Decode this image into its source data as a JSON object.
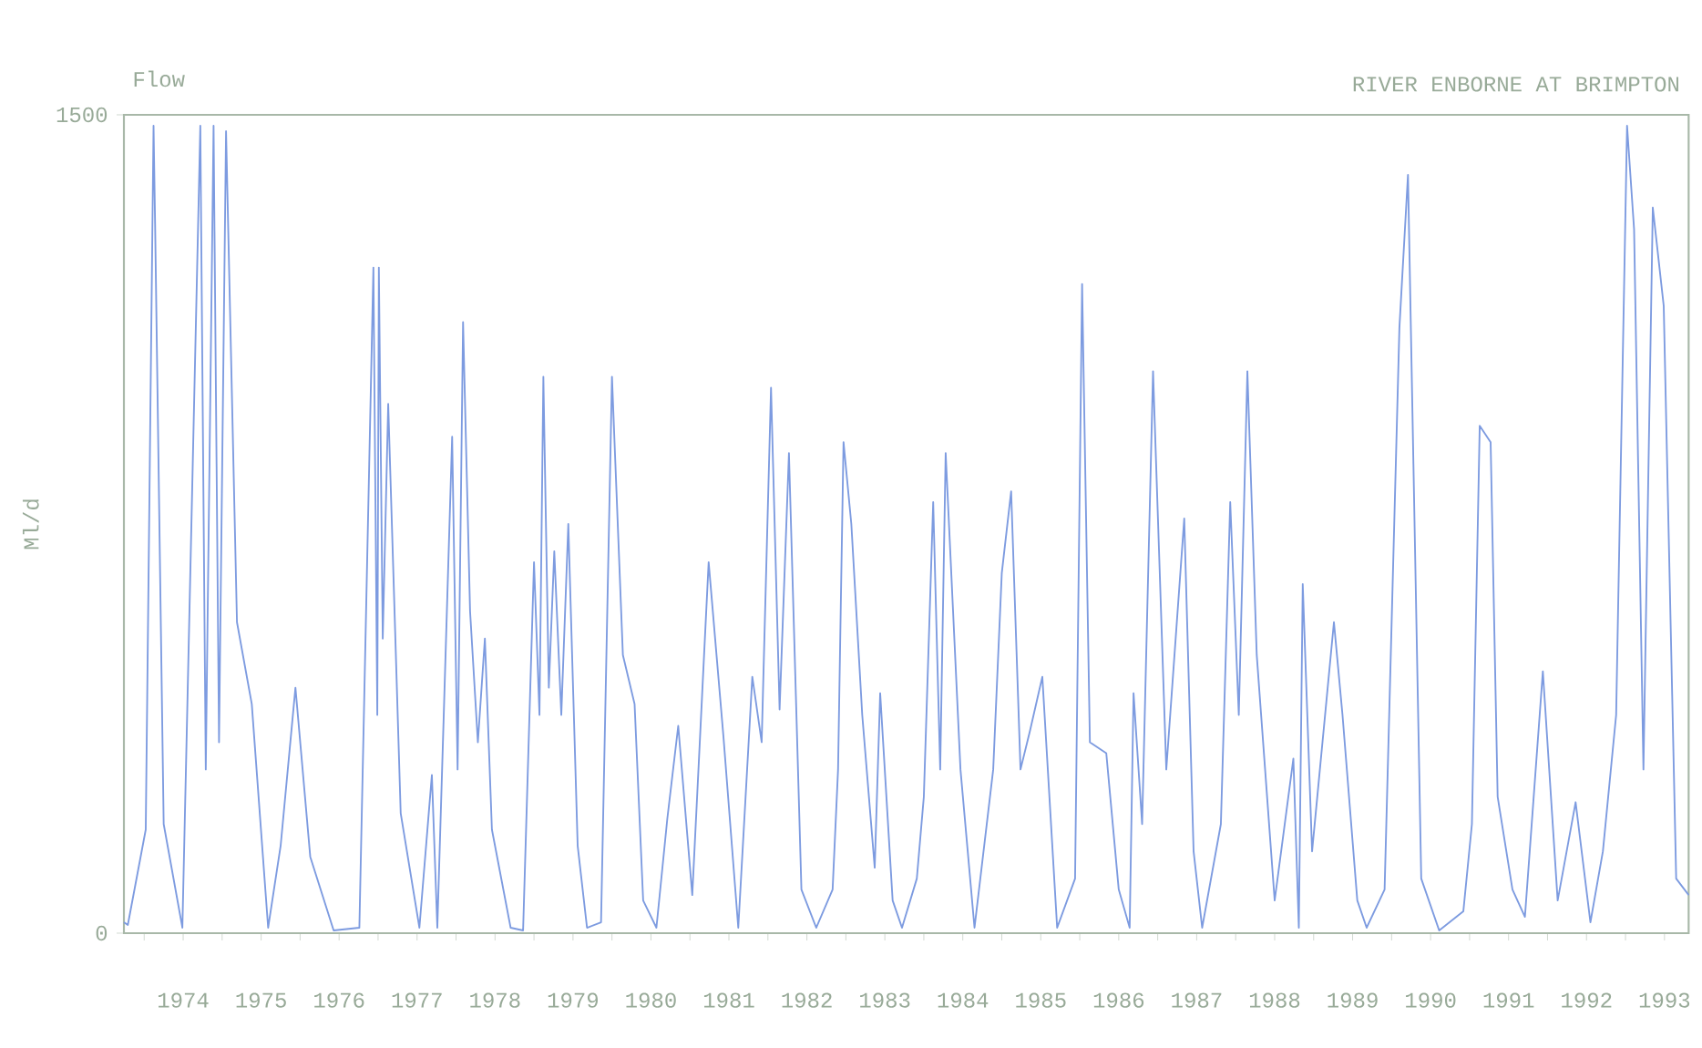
{
  "chart_data": {
    "type": "line",
    "title": "RIVER ENBORNE AT BRIMPTON",
    "annotations": [
      "Flow"
    ],
    "ylabel": "Ml/d",
    "xlim": [
      1973.74,
      1993.81
    ],
    "ylim": [
      0,
      1500
    ],
    "yticks": [
      0,
      1500
    ],
    "xticks": [
      {
        "value": 1974,
        "label": null
      },
      {
        "value": 1974.5,
        "label": "1974"
      },
      {
        "value": 1975,
        "label": null
      },
      {
        "value": 1975.5,
        "label": "1975"
      },
      {
        "value": 1976,
        "label": null
      },
      {
        "value": 1976.5,
        "label": "1976"
      },
      {
        "value": 1977,
        "label": null
      },
      {
        "value": 1977.5,
        "label": "1977"
      },
      {
        "value": 1978,
        "label": null
      },
      {
        "value": 1978.5,
        "label": "1978"
      },
      {
        "value": 1979,
        "label": null
      },
      {
        "value": 1979.5,
        "label": "1979"
      },
      {
        "value": 1980,
        "label": null
      },
      {
        "value": 1980.5,
        "label": "1980"
      },
      {
        "value": 1981,
        "label": null
      },
      {
        "value": 1981.5,
        "label": "1981"
      },
      {
        "value": 1982,
        "label": null
      },
      {
        "value": 1982.5,
        "label": "1982"
      },
      {
        "value": 1983,
        "label": null
      },
      {
        "value": 1983.5,
        "label": "1983"
      },
      {
        "value": 1984,
        "label": null
      },
      {
        "value": 1984.5,
        "label": "1984"
      },
      {
        "value": 1985,
        "label": null
      },
      {
        "value": 1985.5,
        "label": "1985"
      },
      {
        "value": 1986,
        "label": null
      },
      {
        "value": 1986.5,
        "label": "1986"
      },
      {
        "value": 1987,
        "label": null
      },
      {
        "value": 1987.5,
        "label": "1987"
      },
      {
        "value": 1988,
        "label": null
      },
      {
        "value": 1988.5,
        "label": "1988"
      },
      {
        "value": 1989,
        "label": null
      },
      {
        "value": 1989.5,
        "label": "1989"
      },
      {
        "value": 1990,
        "label": null
      },
      {
        "value": 1990.5,
        "label": "1990"
      },
      {
        "value": 1991,
        "label": null
      },
      {
        "value": 1991.5,
        "label": "1991"
      },
      {
        "value": 1992,
        "label": null
      },
      {
        "value": 1992.5,
        "label": "1992"
      },
      {
        "value": 1993,
        "label": null
      },
      {
        "value": 1993.5,
        "label": "1993"
      }
    ],
    "series": [
      {
        "color": "#7d9be0",
        "x": [
          1973.74,
          1973.79,
          1974.02,
          1974.12,
          1974.14,
          1974.25,
          1974.49,
          1974.72,
          1974.79,
          1974.89,
          1974.96,
          1975.05,
          1975.19,
          1975.38,
          1975.59,
          1975.75,
          1975.94,
          1976.13,
          1976.43,
          1976.76,
          1976.94,
          1976.99,
          1977.01,
          1977.06,
          1977.13,
          1977.29,
          1977.53,
          1977.69,
          1977.76,
          1977.95,
          1978.02,
          1978.09,
          1978.18,
          1978.28,
          1978.37,
          1978.46,
          1978.7,
          1978.86,
          1979.0,
          1979.07,
          1979.12,
          1979.19,
          1979.26,
          1979.35,
          1979.44,
          1979.56,
          1979.68,
          1979.86,
          1980.0,
          1980.14,
          1980.29,
          1980.4,
          1980.57,
          1980.71,
          1980.85,
          1981.03,
          1981.24,
          1981.43,
          1981.62,
          1981.8,
          1981.92,
          1982.04,
          1982.15,
          1982.27,
          1982.43,
          1982.62,
          1982.83,
          1982.9,
          1982.97,
          1983.07,
          1983.21,
          1983.37,
          1983.44,
          1983.6,
          1983.72,
          1983.91,
          1984.0,
          1984.12,
          1984.21,
          1984.28,
          1984.47,
          1984.65,
          1984.89,
          1985.0,
          1985.12,
          1985.24,
          1985.36,
          1985.52,
          1985.71,
          1985.94,
          1986.03,
          1986.13,
          1986.34,
          1986.5,
          1986.64,
          1986.69,
          1986.8,
          1986.94,
          1987.11,
          1987.34,
          1987.46,
          1987.57,
          1987.81,
          1987.93,
          1988.04,
          1988.15,
          1988.27,
          1988.5,
          1988.74,
          1988.81,
          1988.86,
          1988.98,
          1989.26,
          1989.37,
          1989.56,
          1989.68,
          1989.91,
          1990.1,
          1990.21,
          1990.38,
          1990.61,
          1990.92,
          1991.03,
          1991.13,
          1991.27,
          1991.36,
          1991.55,
          1991.71,
          1991.94,
          1992.13,
          1992.36,
          1992.55,
          1992.71,
          1992.88,
          1993.02,
          1993.11,
          1993.23,
          1993.35,
          1993.49,
          1993.65,
          1993.81
        ],
        "values": [
          20,
          15,
          190,
          1480,
          1300,
          200,
          10,
          1480,
          300,
          1480,
          350,
          1470,
          570,
          420,
          10,
          160,
          450,
          140,
          5,
          10,
          1220,
          400,
          1220,
          540,
          970,
          220,
          10,
          290,
          10,
          910,
          300,
          1120,
          590,
          350,
          540,
          190,
          10,
          5,
          680,
          400,
          1020,
          450,
          700,
          400,
          750,
          160,
          10,
          20,
          1020,
          510,
          420,
          60,
          10,
          210,
          380,
          70,
          680,
          360,
          10,
          470,
          350,
          1000,
          410,
          880,
          80,
          10,
          80,
          300,
          900,
          750,
          400,
          120,
          440,
          60,
          10,
          100,
          250,
          790,
          300,
          880,
          300,
          10,
          300,
          660,
          810,
          300,
          370,
          470,
          10,
          100,
          1190,
          350,
          330,
          80,
          10,
          440,
          200,
          1030,
          300,
          760,
          150,
          10,
          200,
          790,
          400,
          1030,
          510,
          60,
          320,
          10,
          640,
          150,
          570,
          400,
          60,
          10,
          80,
          1110,
          1390,
          100,
          5,
          40,
          200,
          930,
          900,
          250,
          80,
          30,
          480,
          60,
          240,
          20,
          150,
          400,
          1480,
          1290,
          300,
          1330,
          1150,
          100,
          70
        ]
      }
    ]
  }
}
